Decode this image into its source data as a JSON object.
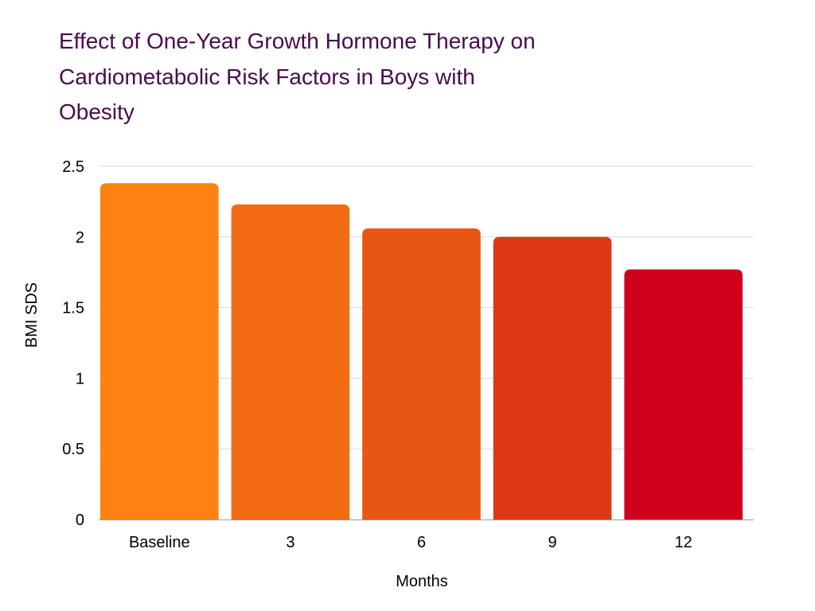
{
  "chart_data": {
    "type": "bar",
    "title_lines": [
      "Effect of One-Year Growth Hormone Therapy on",
      "Cardiometabolic Risk Factors in Boys with",
      "Obesity"
    ],
    "xlabel": "Months",
    "ylabel": "BMI SDS",
    "categories": [
      "Baseline",
      "3",
      "6",
      "9",
      "12"
    ],
    "values": [
      2.38,
      2.23,
      2.06,
      2.0,
      1.77
    ],
    "ylim": [
      0,
      2.5
    ],
    "yticks": [
      0,
      0.5,
      1,
      1.5,
      2,
      2.5
    ],
    "ytick_labels": [
      "0",
      "0.5",
      "1",
      "1.5",
      "2",
      "2.5"
    ],
    "grid": true,
    "legend": "none",
    "colors": [
      "#fd8211",
      "#f36b12",
      "#e95513",
      "#de3816",
      "#d0021b"
    ]
  }
}
